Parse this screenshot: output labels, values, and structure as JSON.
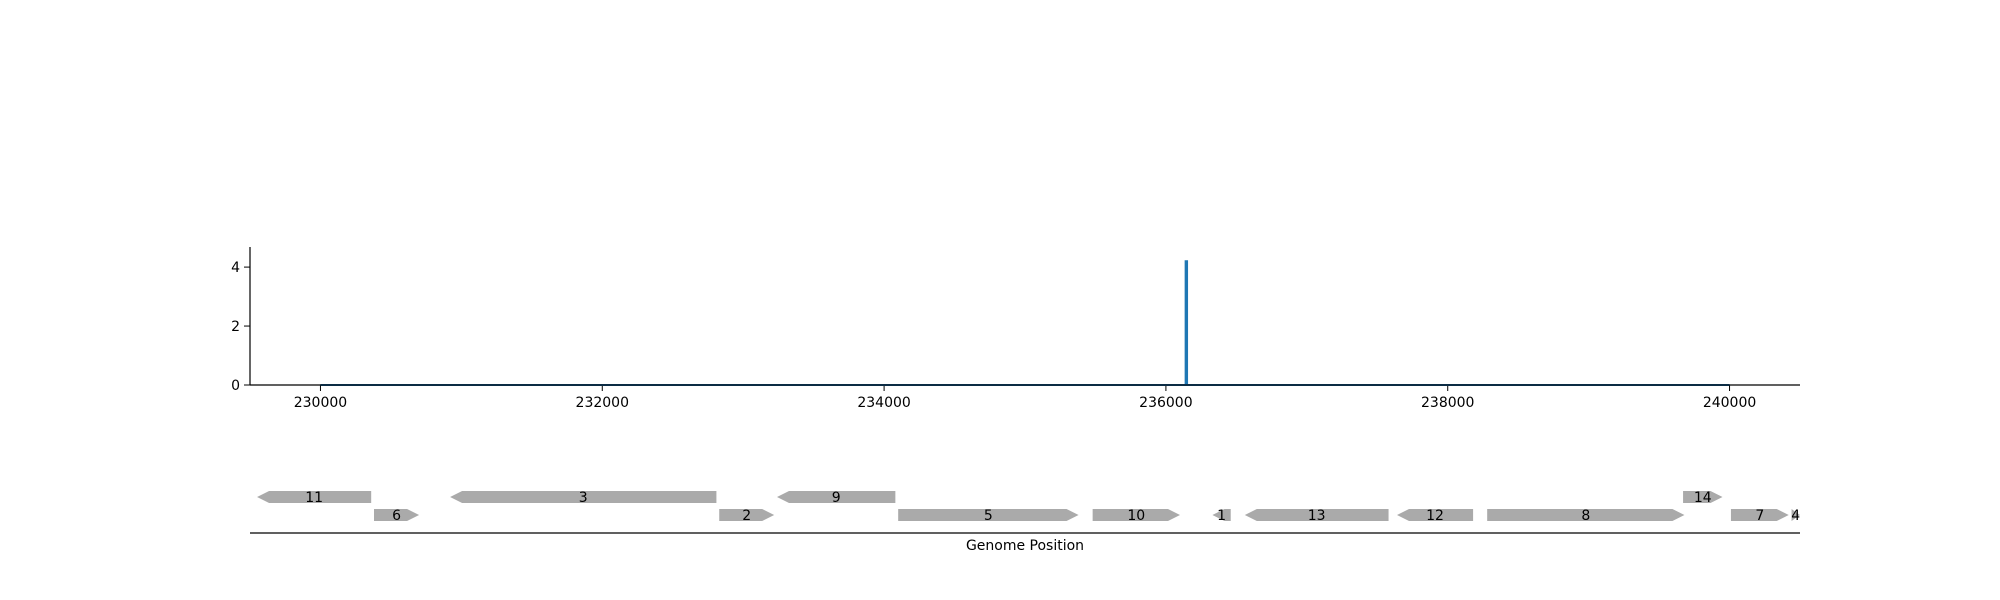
{
  "chart_data": [
    {
      "type": "line",
      "series": [
        {
          "x": [
            230000,
            236140,
            236140,
            236150,
            236150,
            240000
          ],
          "y": [
            0,
            0,
            4.2,
            4.2,
            0,
            0
          ]
        }
      ],
      "xlim": [
        229500,
        240500
      ],
      "ylim": [
        0,
        4.6
      ],
      "xticks": [
        230000,
        232000,
        234000,
        236000,
        238000,
        240000
      ],
      "xtick_labels": [
        "230000",
        "232000",
        "234000",
        "236000",
        "238000",
        "240000"
      ],
      "yticks": [
        0,
        2,
        4
      ],
      "ytick_labels": [
        "0",
        "2",
        "4"
      ],
      "grid": false,
      "line_color": "#1f77b4"
    },
    {
      "type": "gene_track",
      "xlabel": "Genome Position",
      "xlim": [
        229500,
        240500
      ],
      "genes": [
        {
          "label": "11",
          "start": 229550,
          "end": 230360,
          "strand": "-",
          "row": 0
        },
        {
          "label": "6",
          "start": 230380,
          "end": 230700,
          "strand": "+",
          "row": 1
        },
        {
          "label": "3",
          "start": 230920,
          "end": 232810,
          "strand": "-",
          "row": 0
        },
        {
          "label": "2",
          "start": 232830,
          "end": 233220,
          "strand": "+",
          "row": 1
        },
        {
          "label": "9",
          "start": 233240,
          "end": 234080,
          "strand": "-",
          "row": 0
        },
        {
          "label": "5",
          "start": 234100,
          "end": 235380,
          "strand": "+",
          "row": 1
        },
        {
          "label": "10",
          "start": 235480,
          "end": 236100,
          "strand": "+",
          "row": 1
        },
        {
          "label": "1",
          "start": 236330,
          "end": 236460,
          "strand": "-",
          "row": 1
        },
        {
          "label": "13",
          "start": 236560,
          "end": 237580,
          "strand": "-",
          "row": 1
        },
        {
          "label": "12",
          "start": 237640,
          "end": 238180,
          "strand": "-",
          "row": 1
        },
        {
          "label": "8",
          "start": 238280,
          "end": 239680,
          "strand": "+",
          "row": 1
        },
        {
          "label": "14",
          "start": 239670,
          "end": 239950,
          "strand": "+",
          "row": 0
        },
        {
          "label": "7",
          "start": 240010,
          "end": 240420,
          "strand": "+",
          "row": 1
        },
        {
          "label": "4",
          "start": 240440,
          "end": 240500,
          "strand": "+",
          "row": 1
        }
      ],
      "gene_color": "#aaaaaa"
    }
  ]
}
